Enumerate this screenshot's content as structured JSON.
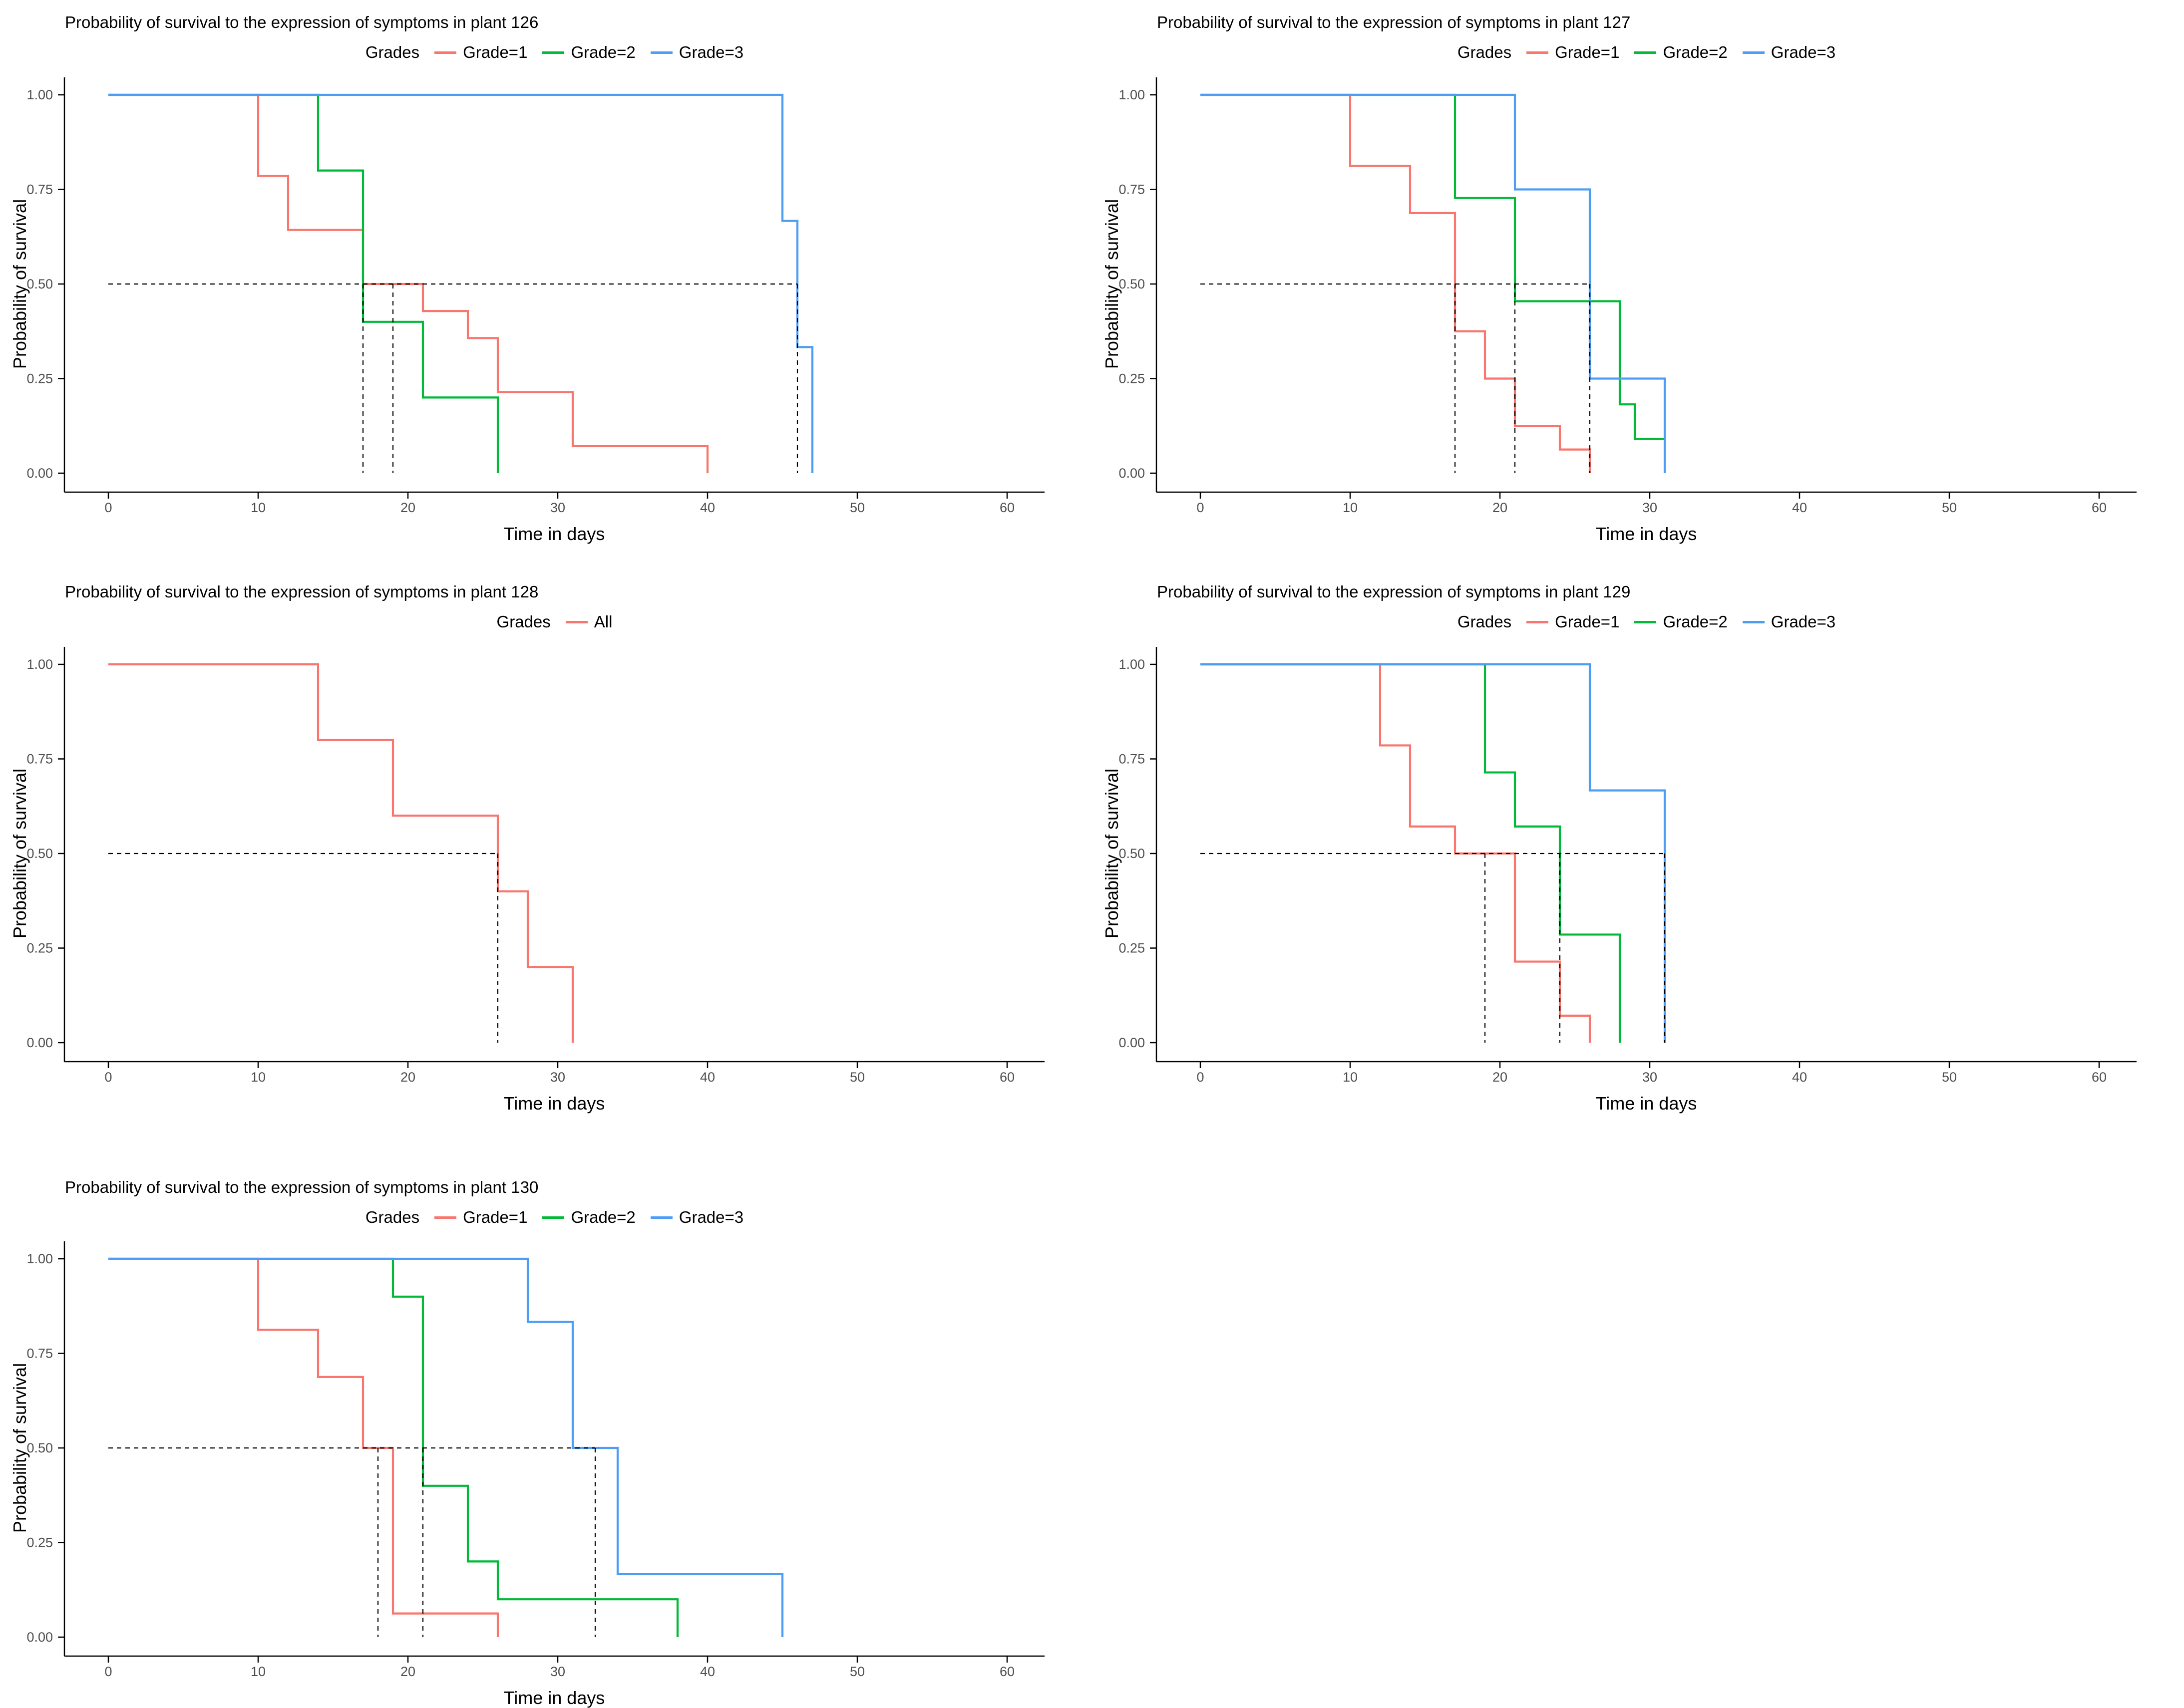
{
  "axis": {
    "x_label": "Time in days",
    "y_label": "Probability of survival",
    "x_ticks": [
      0,
      10,
      20,
      30,
      40,
      50,
      60
    ],
    "y_ticks": [
      {
        "label": "0.00",
        "value": 0
      },
      {
        "label": "0.25",
        "value": 0.25
      },
      {
        "label": "0.50",
        "value": 0.5
      },
      {
        "label": "0.75",
        "value": 0.75
      },
      {
        "label": "1.00",
        "value": 1
      }
    ],
    "xlim": [
      0,
      60
    ],
    "ylim": [
      0,
      1
    ],
    "grid": "off",
    "legend_position": "top"
  },
  "colors": {
    "grade1": "#F8766D",
    "grade2": "#00BA38",
    "grade3": "#4D9DF6",
    "median_dash": "#000000",
    "axis_line": "#000000",
    "tick_label": "#4D4D4D"
  },
  "chart_data": [
    {
      "type": "step-line",
      "title": "Probability of survival to the expression of symptoms in plant 126",
      "legend_title": "Grades",
      "xlabel": "Time in days",
      "ylabel": "Probability of survival",
      "xlim": [
        0,
        60
      ],
      "ylim": [
        0,
        1
      ],
      "series": [
        {
          "name": "Grade=1",
          "color": "#F8766D",
          "start": [
            0,
            1
          ],
          "steps": [
            [
              10,
              0.7857
            ],
            [
              12,
              0.6429
            ],
            [
              17,
              0.5
            ],
            [
              21,
              0.4286
            ],
            [
              24,
              0.3571
            ],
            [
              26,
              0.2143
            ],
            [
              31,
              0.0714
            ],
            [
              40,
              0
            ]
          ]
        },
        {
          "name": "Grade=2",
          "color": "#00BA38",
          "start": [
            0,
            1
          ],
          "steps": [
            [
              14,
              0.8
            ],
            [
              17,
              0.4
            ],
            [
              21,
              0.2
            ],
            [
              26,
              0
            ]
          ]
        },
        {
          "name": "Grade=3",
          "color": "#4D9DF6",
          "start": [
            0,
            1
          ],
          "steps": [
            [
              45,
              0.6667
            ],
            [
              46,
              0.3333
            ],
            [
              47,
              0
            ]
          ]
        }
      ],
      "median_lines": {
        "y": 0.5,
        "h_extent_x": 46,
        "vertical_x": [
          17,
          19,
          46
        ]
      }
    },
    {
      "type": "step-line",
      "title": "Probability of survival to the expression of symptoms in plant 127",
      "legend_title": "Grades",
      "xlabel": "Time in days",
      "ylabel": "Probability of survival",
      "xlim": [
        0,
        60
      ],
      "ylim": [
        0,
        1
      ],
      "series": [
        {
          "name": "Grade=1",
          "color": "#F8766D",
          "start": [
            0,
            1
          ],
          "steps": [
            [
              10,
              0.8125
            ],
            [
              14,
              0.6875
            ],
            [
              17,
              0.375
            ],
            [
              19,
              0.25
            ],
            [
              21,
              0.125
            ],
            [
              24,
              0.0625
            ],
            [
              26,
              0
            ]
          ]
        },
        {
          "name": "Grade=2",
          "color": "#00BA38",
          "start": [
            0,
            1
          ],
          "steps": [
            [
              17,
              0.7273
            ],
            [
              21,
              0.4545
            ],
            [
              28,
              0.1818
            ],
            [
              29,
              0.0909
            ],
            [
              31,
              0.0909
            ]
          ]
        },
        {
          "name": "Grade=3",
          "color": "#4D9DF6",
          "start": [
            0,
            1
          ],
          "steps": [
            [
              21,
              0.75
            ],
            [
              26,
              0.25
            ],
            [
              31,
              0
            ]
          ]
        }
      ],
      "median_lines": {
        "y": 0.5,
        "h_extent_x": 26,
        "vertical_x": [
          17,
          21,
          26
        ]
      }
    },
    {
      "type": "step-line",
      "title": "Probability of survival to the expression of symptoms in plant 128",
      "legend_title": "Grades",
      "xlabel": "Time in days",
      "ylabel": "Probability of survival",
      "xlim": [
        0,
        60
      ],
      "ylim": [
        0,
        1
      ],
      "series": [
        {
          "name": "All",
          "color": "#F8766D",
          "start": [
            0,
            1
          ],
          "steps": [
            [
              14,
              0.8
            ],
            [
              19,
              0.6
            ],
            [
              26,
              0.4
            ],
            [
              28,
              0.2
            ],
            [
              31,
              0
            ]
          ]
        }
      ],
      "median_lines": {
        "y": 0.5,
        "h_extent_x": 26,
        "vertical_x": [
          26
        ]
      }
    },
    {
      "type": "step-line",
      "title": "Probability of survival to the expression of symptoms in plant 129",
      "legend_title": "Grades",
      "xlabel": "Time in days",
      "ylabel": "Probability of survival",
      "xlim": [
        0,
        60
      ],
      "ylim": [
        0,
        1
      ],
      "series": [
        {
          "name": "Grade=1",
          "color": "#F8766D",
          "start": [
            0,
            1
          ],
          "steps": [
            [
              12,
              0.7857
            ],
            [
              14,
              0.5714
            ],
            [
              17,
              0.5
            ],
            [
              21,
              0.2143
            ],
            [
              24,
              0.0714
            ],
            [
              26,
              0
            ]
          ]
        },
        {
          "name": "Grade=2",
          "color": "#00BA38",
          "start": [
            0,
            1
          ],
          "steps": [
            [
              19,
              0.7143
            ],
            [
              21,
              0.5714
            ],
            [
              24,
              0.2857
            ],
            [
              28,
              0
            ]
          ]
        },
        {
          "name": "Grade=3",
          "color": "#4D9DF6",
          "start": [
            0,
            1
          ],
          "steps": [
            [
              26,
              0.6667
            ],
            [
              31,
              0
            ]
          ]
        }
      ],
      "median_lines": {
        "y": 0.5,
        "h_extent_x": 31,
        "vertical_x": [
          19,
          24,
          31
        ]
      }
    },
    {
      "type": "step-line",
      "title": "Probability of survival to the expression of symptoms in plant 130",
      "legend_title": "Grades",
      "xlabel": "Time in days",
      "ylabel": "Probability of survival",
      "xlim": [
        0,
        60
      ],
      "ylim": [
        0,
        1
      ],
      "series": [
        {
          "name": "Grade=1",
          "color": "#F8766D",
          "start": [
            0,
            1
          ],
          "steps": [
            [
              10,
              0.8125
            ],
            [
              14,
              0.6875
            ],
            [
              17,
              0.5
            ],
            [
              19,
              0.0625
            ],
            [
              26,
              0
            ]
          ]
        },
        {
          "name": "Grade=2",
          "color": "#00BA38",
          "start": [
            0,
            1
          ],
          "steps": [
            [
              19,
              0.9
            ],
            [
              21,
              0.4
            ],
            [
              24,
              0.2
            ],
            [
              26,
              0.1
            ],
            [
              38,
              0
            ]
          ]
        },
        {
          "name": "Grade=3",
          "color": "#4D9DF6",
          "start": [
            0,
            1
          ],
          "steps": [
            [
              28,
              0.8333
            ],
            [
              31,
              0.5
            ],
            [
              34,
              0.1667
            ],
            [
              45,
              0
            ]
          ]
        }
      ],
      "median_lines": {
        "y": 0.5,
        "h_extent_x": 32.5,
        "vertical_x": [
          18,
          21,
          32.5
        ]
      }
    }
  ]
}
